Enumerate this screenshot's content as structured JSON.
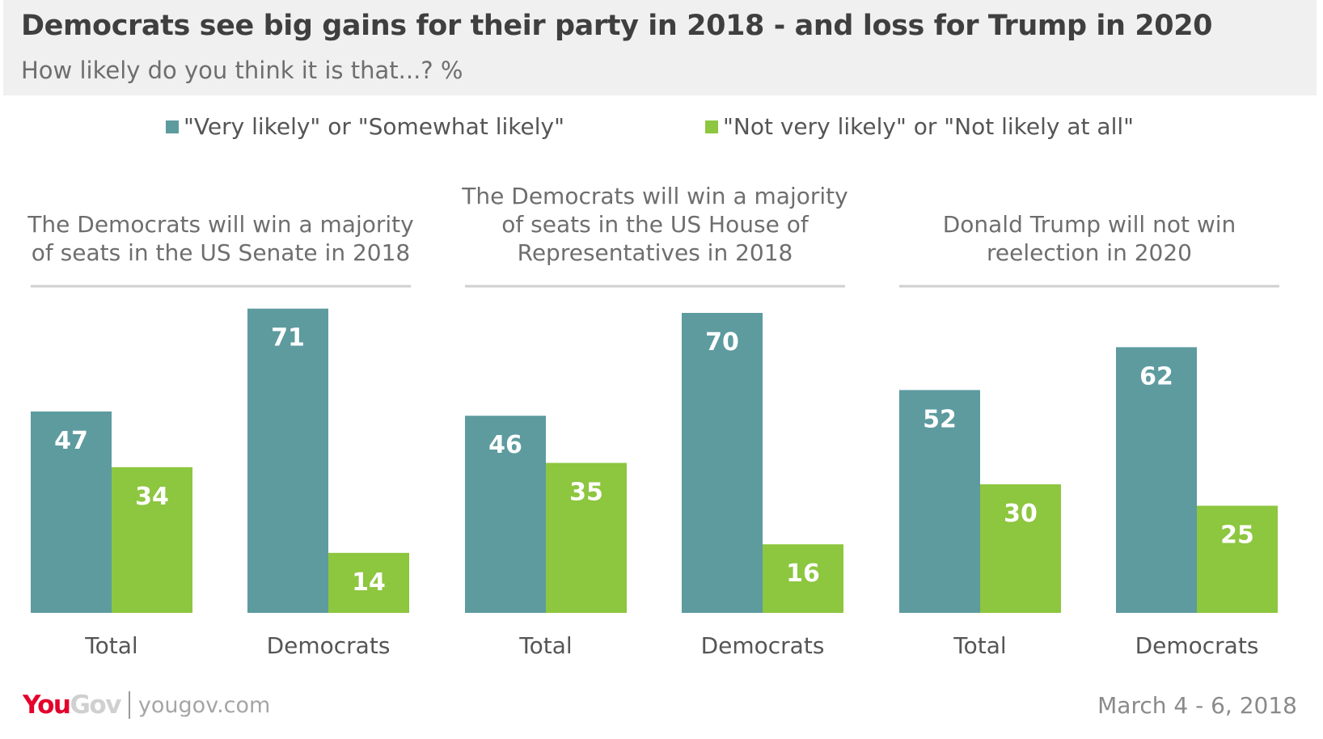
{
  "header": {
    "title": "Democrats see big gains for their party in 2018 - and loss for Trump in 2020",
    "subtitle": "How likely do you think it is that...? %"
  },
  "legend": {
    "items": [
      {
        "label": "\"Very likely\" or \"Somewhat likely\"",
        "color": "#5d9b9f"
      },
      {
        "label": "\"Not very likely\" or \"Not likely at all\"",
        "color": "#8dc63f"
      }
    ]
  },
  "chart_data": {
    "type": "bar",
    "ylim": [
      0,
      75
    ],
    "series_names": [
      "\"Very likely\" or \"Somewhat likely\"",
      "\"Not very likely\" or \"Not likely at all\""
    ],
    "colors": [
      "#5d9b9f",
      "#8dc63f"
    ],
    "panels": [
      {
        "title": [
          "The Democrats will win a majority",
          "of seats in the US Senate in 2018"
        ],
        "categories": [
          "Total",
          "Democrats"
        ],
        "series": [
          {
            "name": "\"Very likely\" or \"Somewhat likely\"",
            "values": [
              47,
              71
            ]
          },
          {
            "name": "\"Not very likely\" or \"Not likely at all\"",
            "values": [
              34,
              14
            ]
          }
        ]
      },
      {
        "title": [
          "The Democrats will win a majority",
          "of seats in the US House of",
          "Representatives in 2018"
        ],
        "categories": [
          "Total",
          "Democrats"
        ],
        "series": [
          {
            "name": "\"Very likely\" or \"Somewhat likely\"",
            "values": [
              46,
              70
            ]
          },
          {
            "name": "\"Not very likely\" or \"Not likely at all\"",
            "values": [
              35,
              16
            ]
          }
        ]
      },
      {
        "title": [
          "Donald Trump will not win",
          "reelection in 2020"
        ],
        "categories": [
          "Total",
          "Democrats"
        ],
        "series": [
          {
            "name": "\"Very likely\" or \"Somewhat likely\"",
            "values": [
              52,
              62
            ]
          },
          {
            "name": "\"Not very likely\" or \"Not likely at all\"",
            "values": [
              30,
              25
            ]
          }
        ]
      }
    ]
  },
  "footer": {
    "logo_you": "You",
    "logo_gov": "Gov",
    "url": "yougov.com",
    "date": "March 4 - 6, 2018"
  }
}
